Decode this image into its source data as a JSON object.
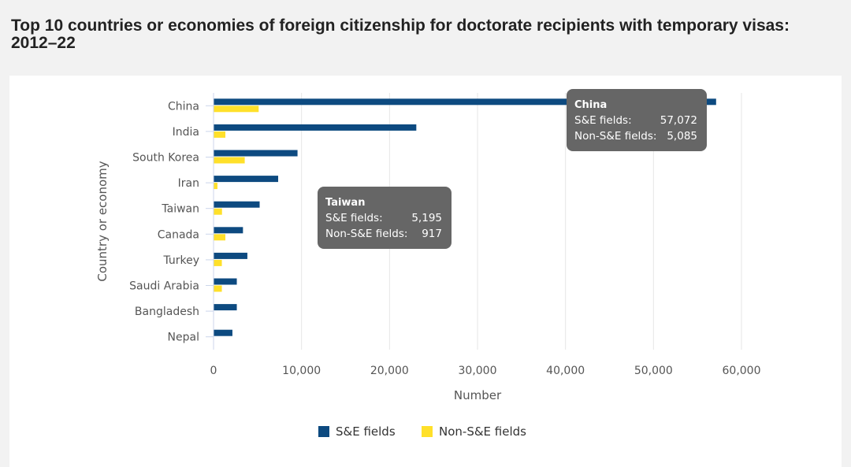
{
  "page": {
    "title": "Top 10 countries or economies of foreign citizenship for doctorate recipients with temporary visas: 2012–22"
  },
  "chart_data": {
    "type": "bar",
    "orientation": "horizontal",
    "categories": [
      "China",
      "India",
      "South Korea",
      "Iran",
      "Taiwan",
      "Canada",
      "Turkey",
      "Saudi Arabia",
      "Bangladesh",
      "Nepal"
    ],
    "series": [
      {
        "name": "S&E fields",
        "color": "#0d4a80",
        "values": [
          57072,
          23000,
          9500,
          7300,
          5195,
          3300,
          3800,
          2600,
          2600,
          2100
        ]
      },
      {
        "name": "Non-S&E fields",
        "color": "#ffe02a",
        "values": [
          5085,
          1300,
          3500,
          400,
          917,
          1300,
          900,
          900,
          0,
          0
        ]
      }
    ],
    "xlabel": "Number",
    "ylabel": "Country or economy",
    "xlim": [
      0,
      60000
    ],
    "xticks": [
      0,
      10000,
      20000,
      30000,
      40000,
      50000,
      60000
    ],
    "xtick_labels": [
      "0",
      "10,000",
      "20,000",
      "30,000",
      "40,000",
      "50,000",
      "60,000"
    ],
    "grid": "vertical",
    "legend_position": "bottom",
    "tooltips": [
      {
        "title": "China",
        "rows": [
          {
            "label": "S&E fields:",
            "value": "57,072"
          },
          {
            "label": "Non-S&E fields:",
            "value": "5,085"
          }
        ]
      },
      {
        "title": "Taiwan",
        "rows": [
          {
            "label": "S&E fields:",
            "value": "5,195"
          },
          {
            "label": "Non-S&E fields:",
            "value": "917"
          }
        ]
      }
    ],
    "tooltip_color": "#666666"
  }
}
